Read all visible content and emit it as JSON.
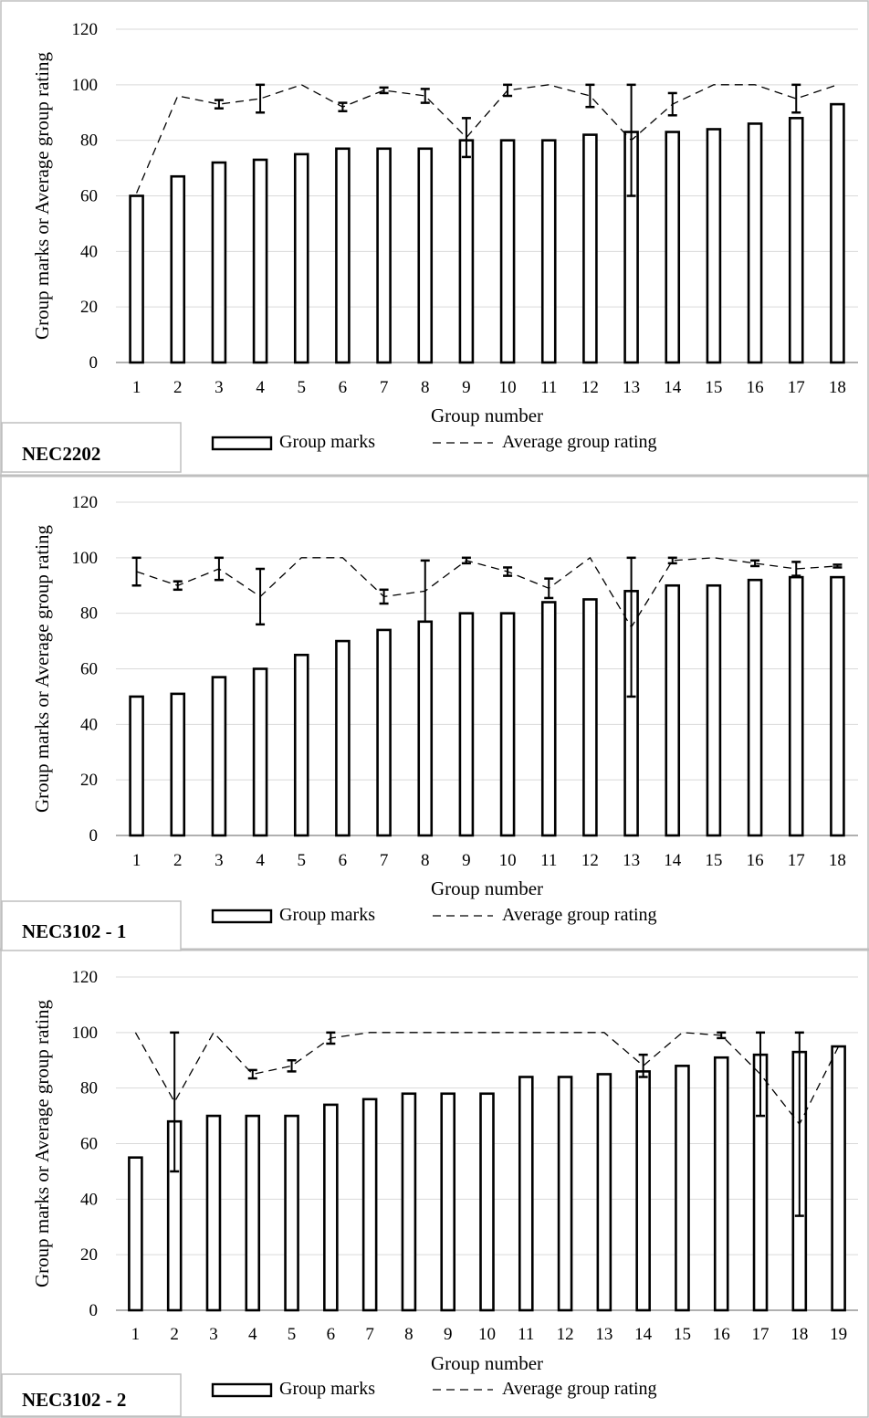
{
  "legend": {
    "bar_label": "Group marks",
    "line_label": "Average group rating"
  },
  "chart_data": [
    {
      "type": "bar",
      "title": "NEC2202",
      "xlabel": "Group number",
      "ylabel": "Group marks or Average group rating",
      "ylim": [
        0,
        120
      ],
      "yticks": [
        0,
        20,
        40,
        60,
        80,
        100,
        120
      ],
      "grid": true,
      "legend_position": "bottom",
      "categories": [
        "1",
        "2",
        "3",
        "4",
        "5",
        "6",
        "7",
        "8",
        "9",
        "10",
        "11",
        "12",
        "13",
        "14",
        "15",
        "16",
        "17",
        "18"
      ],
      "series": [
        {
          "name": "Group marks",
          "type": "bar",
          "values": [
            60,
            67,
            72,
            73,
            75,
            77,
            77,
            77,
            80,
            80,
            80,
            82,
            83,
            83,
            84,
            86,
            88,
            93
          ]
        },
        {
          "name": "Average group rating",
          "type": "line",
          "values": [
            61,
            96,
            93,
            95,
            100,
            92,
            98,
            96,
            81,
            98,
            100,
            96,
            80,
            93,
            100,
            100,
            95,
            100
          ],
          "error": [
            0,
            0,
            1.5,
            5,
            0,
            1.5,
            1,
            2.5,
            7,
            2,
            0,
            4,
            20,
            4,
            0,
            0,
            5,
            0
          ]
        }
      ]
    },
    {
      "type": "bar",
      "title": "NEC3102 - 1",
      "xlabel": "Group number",
      "ylabel": "Group marks or Average group rating",
      "ylim": [
        0,
        120
      ],
      "yticks": [
        0,
        20,
        40,
        60,
        80,
        100,
        120
      ],
      "grid": true,
      "legend_position": "bottom",
      "categories": [
        "1",
        "2",
        "3",
        "4",
        "5",
        "6",
        "7",
        "8",
        "9",
        "10",
        "11",
        "12",
        "13",
        "14",
        "15",
        "16",
        "17",
        "18"
      ],
      "series": [
        {
          "name": "Group marks",
          "type": "bar",
          "values": [
            50,
            51,
            57,
            60,
            65,
            70,
            74,
            77,
            80,
            80,
            84,
            85,
            88,
            90,
            90,
            92,
            93,
            93
          ]
        },
        {
          "name": "Average group rating",
          "type": "line",
          "values": [
            95,
            90,
            96,
            86,
            100,
            100,
            86,
            88,
            99,
            95,
            89,
            100,
            75,
            99,
            100,
            98,
            96,
            97
          ],
          "error": [
            5,
            1.5,
            4,
            10,
            0,
            0,
            2.5,
            11,
            1,
            1.5,
            3.5,
            0,
            25,
            1,
            0,
            1,
            2.5,
            0.5
          ]
        }
      ]
    },
    {
      "type": "bar",
      "title": "NEC3102 - 2",
      "xlabel": "Group number",
      "ylabel": "Group marks or Average group rating",
      "ylim": [
        0,
        120
      ],
      "yticks": [
        0,
        20,
        40,
        60,
        80,
        100,
        120
      ],
      "grid": true,
      "legend_position": "bottom",
      "categories": [
        "1",
        "2",
        "3",
        "4",
        "5",
        "6",
        "7",
        "8",
        "9",
        "10",
        "11",
        "12",
        "13",
        "14",
        "15",
        "16",
        "17",
        "18",
        "19"
      ],
      "series": [
        {
          "name": "Group marks",
          "type": "bar",
          "values": [
            55,
            68,
            70,
            70,
            70,
            74,
            76,
            78,
            78,
            78,
            84,
            84,
            85,
            86,
            88,
            91,
            92,
            93,
            95
          ]
        },
        {
          "name": "Average group rating",
          "type": "line",
          "values": [
            100,
            75,
            100,
            85,
            88,
            98,
            100,
            100,
            100,
            100,
            100,
            100,
            100,
            88,
            100,
            99,
            85,
            67,
            95
          ],
          "error": [
            0,
            25,
            0,
            1.5,
            2,
            2,
            0,
            0,
            0,
            0,
            0,
            0,
            0,
            4,
            0,
            1,
            15,
            33,
            0
          ]
        }
      ]
    }
  ]
}
